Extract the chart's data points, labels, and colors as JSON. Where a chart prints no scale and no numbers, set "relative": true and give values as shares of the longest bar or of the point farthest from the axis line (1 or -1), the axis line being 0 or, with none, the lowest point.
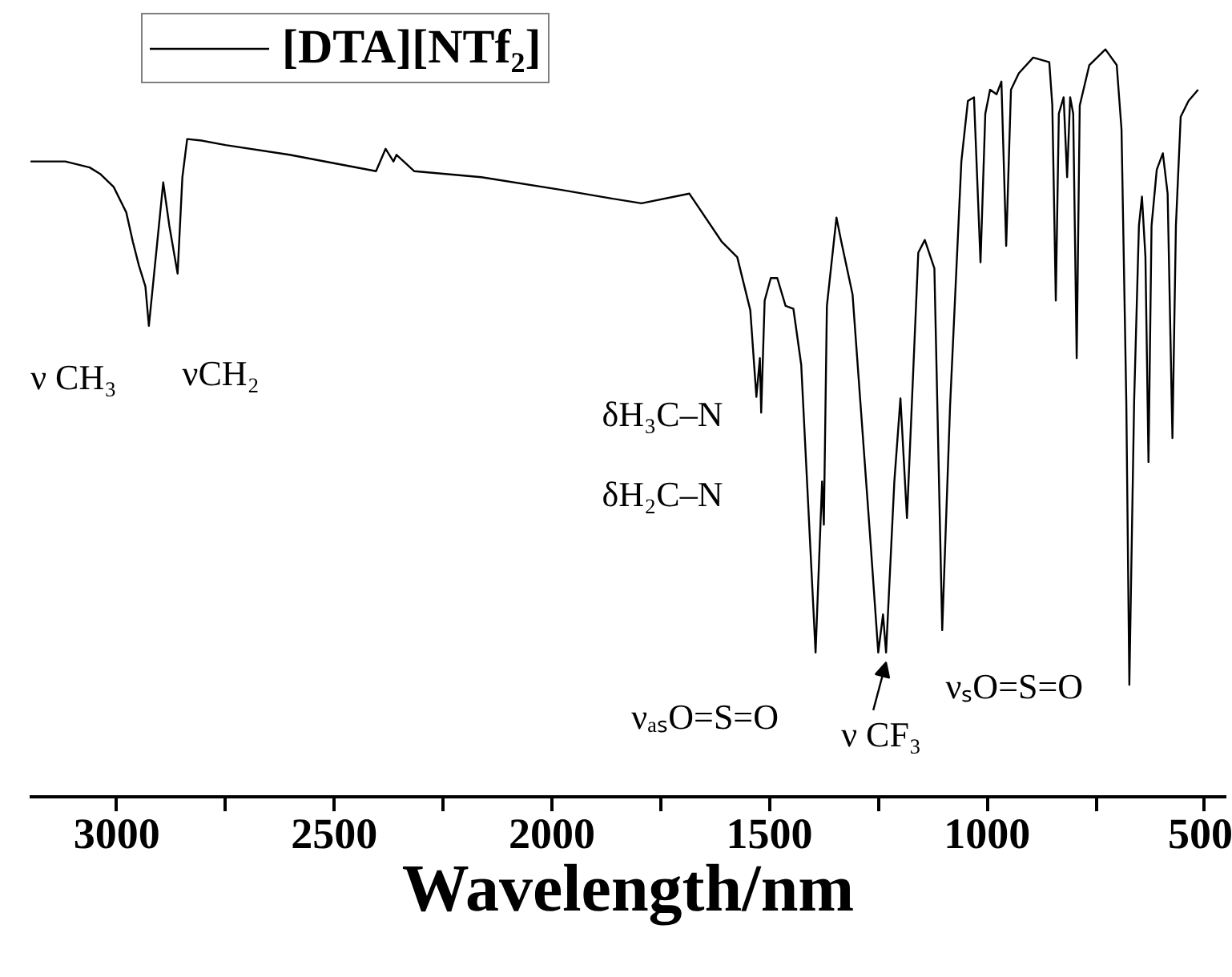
{
  "chart_data": {
    "type": "line",
    "relative": true,
    "xlabel": "Wavelength/nm",
    "xlim": [
      3200,
      450
    ],
    "xticks": [
      3000,
      {
        "value": 2750,
        "label": null
      },
      2500,
      {
        "value": 2250,
        "label": null
      },
      2000,
      {
        "value": 1750,
        "label": null
      },
      1500,
      {
        "value": 1250,
        "label": null
      },
      1000,
      {
        "value": 750,
        "label": null
      },
      500
    ],
    "grid": false,
    "legend": "top left",
    "marker": "none",
    "line_style": "solid",
    "x": [
      3198,
      3118,
      3062,
      3037,
      3007,
      2978,
      2963,
      2949,
      2934,
      2926,
      2893,
      2879,
      2860,
      2849,
      2838,
      2805,
      2750,
      2603,
      2404,
      2382,
      2364,
      2357,
      2316,
      2162,
      1978,
      1868,
      1794,
      1684,
      1610,
      1574,
      1544,
      1530,
      1522,
      1519,
      1511,
      1497,
      1482,
      1463,
      1445,
      1427,
      1394,
      1379,
      1375,
      1368,
      1346,
      1335,
      1309,
      1269,
      1250,
      1239,
      1232,
      1213,
      1199,
      1184,
      1158,
      1143,
      1121,
      1103,
      1085,
      1059,
      1044,
      1030,
      1015,
      1004,
      993,
      978,
      967,
      956,
      945,
      927,
      894,
      857,
      850,
      842,
      835,
      824,
      816,
      809,
      802,
      794,
      787,
      765,
      728,
      702,
      691,
      680,
      673,
      662,
      651,
      644,
      636,
      629,
      622,
      610,
      596,
      585,
      574,
      566,
      555,
      537,
      515
    ],
    "series": [
      {
        "name": "[DTA][NTf₂]",
        "color": "#000000",
        "values": [
          0.85,
          0.85,
          0.842,
          0.833,
          0.816,
          0.782,
          0.743,
          0.711,
          0.683,
          0.63,
          0.822,
          0.764,
          0.7,
          0.829,
          0.88,
          0.878,
          0.872,
          0.859,
          0.837,
          0.867,
          0.85,
          0.859,
          0.837,
          0.829,
          0.812,
          0.801,
          0.794,
          0.807,
          0.743,
          0.722,
          0.651,
          0.535,
          0.587,
          0.514,
          0.664,
          0.694,
          0.694,
          0.657,
          0.653,
          0.578,
          0.193,
          0.422,
          0.364,
          0.657,
          0.775,
          0.743,
          0.672,
          0.351,
          0.193,
          0.244,
          0.193,
          0.422,
          0.533,
          0.373,
          0.728,
          0.745,
          0.707,
          0.223,
          0.522,
          0.85,
          0.931,
          0.936,
          0.715,
          0.914,
          0.946,
          0.94,
          0.957,
          0.737,
          0.946,
          0.968,
          0.989,
          0.983,
          0.925,
          0.664,
          0.914,
          0.936,
          0.829,
          0.936,
          0.914,
          0.587,
          0.925,
          0.979,
          1.0,
          0.979,
          0.893,
          0.529,
          0.15,
          0.529,
          0.764,
          0.803,
          0.722,
          0.448,
          0.764,
          0.839,
          0.861,
          0.807,
          0.48,
          0.764,
          0.91,
          0.931,
          0.946
        ]
      }
    ],
    "annotations": [
      {
        "text": "ν CH₃",
        "x": 2926,
        "y": 0.63
      },
      {
        "text": "νCH₂",
        "x": 2860,
        "y": 0.7
      },
      "δH₃C–N",
      "δH₂C–N",
      {
        "text": "νₐₛO=S=O",
        "x": 1394,
        "y": 0.193
      },
      {
        "text": "ν CF₃",
        "x": 1232,
        "y": 0.193
      },
      {
        "text": "νₛO=S=O",
        "x": 1103,
        "y": 0.223
      }
    ]
  }
}
